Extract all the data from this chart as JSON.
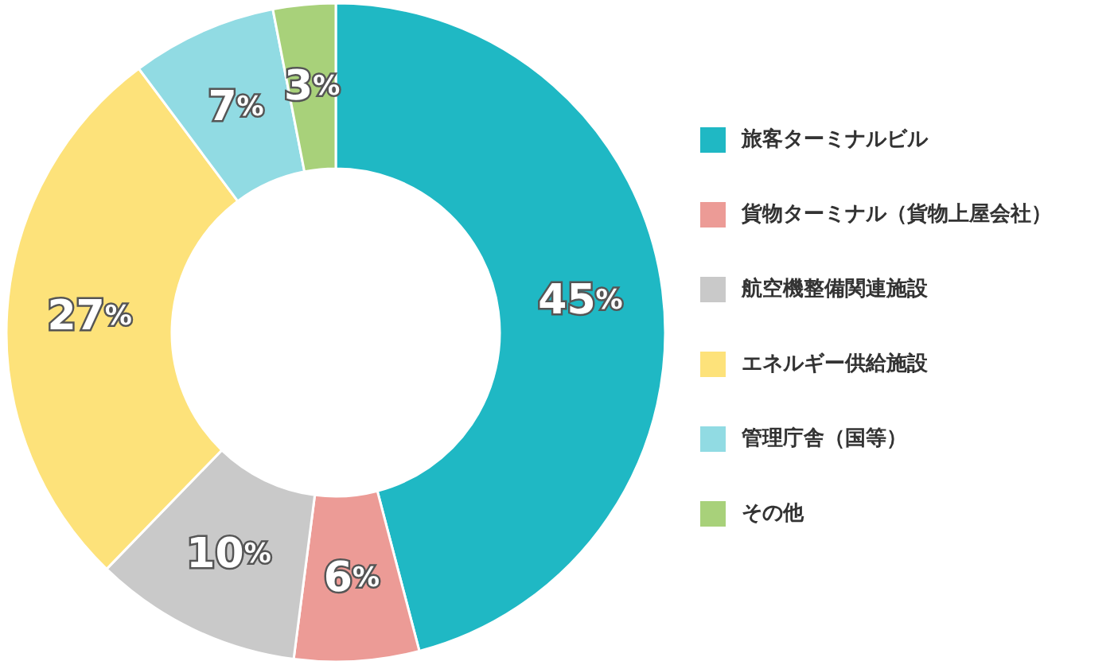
{
  "chart_data": {
    "type": "donut",
    "categories": [
      "旅客ターミナルビル",
      "貨物ターミナル（貨物上屋会社）",
      "航空機整備関連施設",
      "エネルギー供給施設",
      "管理庁舎（国等）",
      "その他"
    ],
    "values": [
      45,
      6,
      10,
      27,
      7,
      3
    ],
    "colors": [
      "#1fb8c4",
      "#ec9b96",
      "#c9c9c9",
      "#fde27a",
      "#91dbe3",
      "#a8d17a"
    ],
    "value_labels": [
      "45%",
      "6%",
      "10%",
      "27%",
      "7%",
      "3%"
    ],
    "legend": "right"
  }
}
